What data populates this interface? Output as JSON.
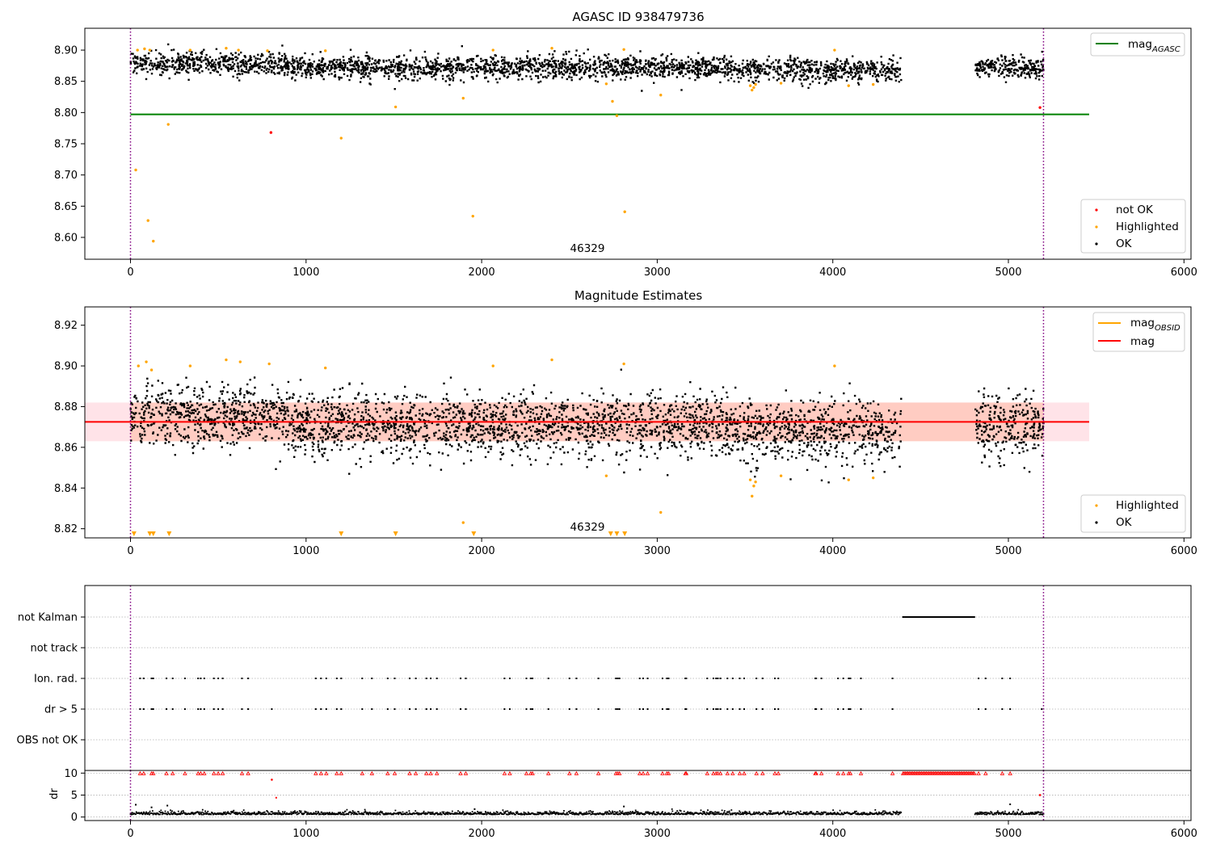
{
  "figure": {
    "background": "#ffffff"
  },
  "colors": {
    "ok": "#000000",
    "highlighted": "#ffa500",
    "not_ok": "#ff0000",
    "agasc_line": "#008000",
    "mag_line": "#ff0000",
    "mag_obsid_line": "#ffa500",
    "band_red": "#ffc0cb",
    "band_orange": "#ffa07a",
    "boundary": "#800080",
    "flag_grid": "#b0b0b0"
  },
  "chart_data": [
    {
      "id": "agasc",
      "type": "scatter",
      "title": "AGASC ID 938479736",
      "xlim": [
        -260,
        6040
      ],
      "ylim": [
        8.565,
        8.935
      ],
      "xticks": [
        0,
        1000,
        2000,
        3000,
        4000,
        5000,
        6000
      ],
      "yticks": [
        8.6,
        8.65,
        8.7,
        8.75,
        8.8,
        8.85,
        8.9
      ],
      "ytick_decimals": 2,
      "boundaries": [
        0,
        5200
      ],
      "annotation": {
        "text": "46329",
        "x": 2600,
        "y": 8.578
      },
      "hline": {
        "y": 8.797,
        "x0": 0,
        "x1": 5460,
        "label_main": "mag",
        "label_sub": "AGASC"
      },
      "ok_band": {
        "center": 8.874,
        "noise": 0.009
      },
      "ok_segments": [
        [
          0,
          4390
        ],
        [
          4810,
          5200
        ]
      ],
      "highlighted": [
        [
          30,
          8.708
        ],
        [
          100,
          8.627
        ],
        [
          130,
          8.594
        ],
        [
          215,
          8.781
        ],
        [
          1200,
          8.759
        ],
        [
          1510,
          8.809
        ],
        [
          1895,
          8.823
        ],
        [
          1950,
          8.634
        ],
        [
          2710,
          8.846
        ],
        [
          2745,
          8.818
        ],
        [
          2770,
          8.795
        ],
        [
          2815,
          8.641
        ],
        [
          3020,
          8.828
        ],
        [
          3530,
          8.843
        ],
        [
          3540,
          8.836
        ],
        [
          3550,
          8.84
        ],
        [
          3560,
          8.845
        ],
        [
          3705,
          8.847
        ],
        [
          4090,
          8.843
        ],
        [
          4230,
          8.845
        ],
        [
          40,
          8.9
        ],
        [
          80,
          8.902
        ],
        [
          110,
          8.9
        ],
        [
          340,
          8.9
        ],
        [
          545,
          8.903
        ],
        [
          615,
          8.9
        ],
        [
          780,
          8.899
        ],
        [
          1110,
          8.899
        ],
        [
          2065,
          8.9
        ],
        [
          2400,
          8.903
        ],
        [
          2810,
          8.901
        ],
        [
          4010,
          8.9
        ]
      ],
      "not_ok": [
        [
          800,
          8.768
        ],
        [
          5180,
          8.808
        ]
      ],
      "legend_bottom": [
        "not OK",
        "Highlighted",
        "OK"
      ]
    },
    {
      "id": "estimates",
      "type": "scatter",
      "title": "Magnitude Estimates",
      "xlim": [
        -260,
        6040
      ],
      "ylim": [
        8.8155,
        8.929
      ],
      "xticks": [
        0,
        1000,
        2000,
        3000,
        4000,
        5000,
        6000
      ],
      "yticks": [
        8.82,
        8.84,
        8.86,
        8.88,
        8.9,
        8.92
      ],
      "ytick_decimals": 2,
      "boundaries": [
        0,
        5200
      ],
      "annotation": {
        "text": "46329",
        "x": 2600,
        "y": 8.8205
      },
      "mag_line": {
        "y": 8.8725,
        "x0": -260,
        "x1": 5460
      },
      "band": {
        "y0": 8.863,
        "y1": 8.882,
        "x0": -260,
        "x1": 5460,
        "x_inner0": 0,
        "x_inner1": 5200
      },
      "ok_band": {
        "center": 8.8715,
        "noise": 0.0075
      },
      "ok_segments": [
        [
          0,
          4390
        ],
        [
          4810,
          5200
        ]
      ],
      "highlighted": [
        [
          45,
          8.9
        ],
        [
          90,
          8.902
        ],
        [
          120,
          8.898
        ],
        [
          340,
          8.9
        ],
        [
          545,
          8.903
        ],
        [
          625,
          8.902
        ],
        [
          790,
          8.901
        ],
        [
          1110,
          8.899
        ],
        [
          2065,
          8.9
        ],
        [
          2400,
          8.903
        ],
        [
          2810,
          8.901
        ],
        [
          4010,
          8.9
        ],
        [
          2710,
          8.846
        ],
        [
          3020,
          8.828
        ],
        [
          1895,
          8.823
        ],
        [
          3530,
          8.844
        ],
        [
          3540,
          8.836
        ],
        [
          3550,
          8.841
        ],
        [
          3560,
          8.843
        ],
        [
          3705,
          8.846
        ],
        [
          4090,
          8.844
        ],
        [
          4230,
          8.845
        ]
      ],
      "lower_markers": [
        20,
        110,
        130,
        220,
        1200,
        1510,
        1955,
        2735,
        2770,
        2815
      ],
      "lower_marker_y": 8.8175,
      "legend_top": {
        "mag_obsid_main": "mag",
        "mag_obsid_sub": "OBSID",
        "mag_label": "mag"
      },
      "legend_bottom": [
        "Highlighted",
        "OK"
      ]
    },
    {
      "id": "flags",
      "type": "scatter",
      "xlim": [
        -260,
        6040
      ],
      "categories": [
        "not Kalman",
        "not track",
        "Ion. rad.",
        "dr > 5",
        "OBS not OK"
      ],
      "boundaries": [
        0,
        5200
      ],
      "not_kalman_range": [
        4400,
        4810
      ],
      "ion_rad_x": [
        55,
        75,
        120,
        130,
        205,
        240,
        310,
        385,
        400,
        420,
        475,
        500,
        525,
        635,
        670,
        1055,
        1085,
        1115,
        1175,
        1200,
        1320,
        1375,
        1465,
        1505,
        1590,
        1625,
        1685,
        1710,
        1745,
        1880,
        1910,
        2130,
        2160,
        2255,
        2280,
        2290,
        2380,
        2500,
        2540,
        2665,
        2765,
        2775,
        2785,
        2900,
        2920,
        2945,
        3030,
        3055,
        3065,
        3160,
        3165,
        3285,
        3320,
        3335,
        3345,
        3360,
        3400,
        3430,
        3470,
        3495,
        3565,
        3600,
        3670,
        3690,
        3900,
        3905,
        3935,
        4030,
        4060,
        4090,
        4100,
        4160,
        4340,
        4830,
        4870,
        4965,
        5010
      ],
      "dr5_extra_x": [
        805,
        5190
      ]
    },
    {
      "id": "dr",
      "type": "line",
      "ylabel": "dr",
      "xlim": [
        -260,
        6040
      ],
      "ylim": [
        -0.8,
        10.6
      ],
      "xticks": [
        0,
        1000,
        2000,
        3000,
        4000,
        5000,
        6000
      ],
      "yticks": [
        0,
        5,
        10
      ],
      "boundaries": [
        0,
        5200
      ],
      "segments": [
        [
          0,
          4390
        ],
        [
          4810,
          5200
        ]
      ],
      "spikes": [
        [
          30,
          2.8
        ],
        [
          120,
          2.2
        ],
        [
          210,
          2.6
        ],
        [
          1960,
          1.8
        ],
        [
          2810,
          2.4
        ],
        [
          5010,
          2.9
        ]
      ],
      "red_x": [
        805,
        5180
      ],
      "red_y": [
        8.5,
        5.0
      ],
      "extra_red": [
        [
          830,
          4.4
        ]
      ]
    }
  ]
}
